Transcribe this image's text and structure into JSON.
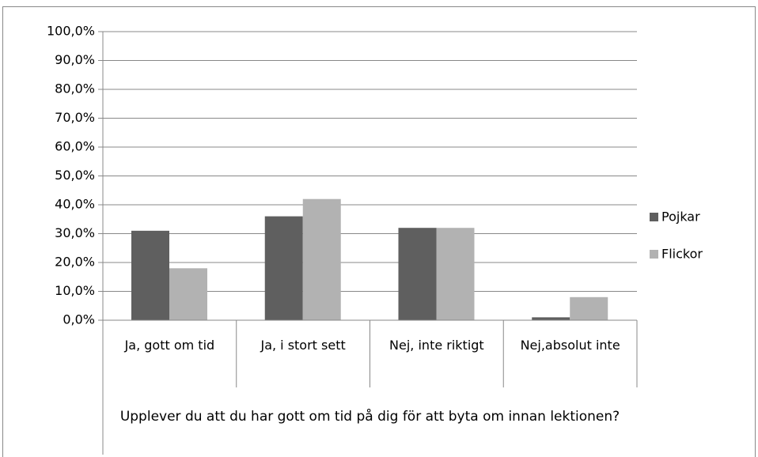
{
  "chart_data": {
    "type": "bar",
    "categories": [
      "Ja, gott om tid",
      "Ja, i stort sett",
      "Nej, inte riktigt",
      "Nej,absolut inte"
    ],
    "x_label": "Upplever du att du har gott om tid på dig för att byta om innan lektionen?",
    "series": [
      {
        "name": "Pojkar",
        "color": "#5f5f5f",
        "values": [
          31,
          36,
          32,
          1
        ]
      },
      {
        "name": "Flickor",
        "color": "#b2b2b2",
        "values": [
          18,
          42,
          32,
          8
        ]
      }
    ],
    "ylim": [
      0,
      100
    ],
    "yticks": [
      {
        "value": 0,
        "label": "0,0%"
      },
      {
        "value": 10,
        "label": "10,0%"
      },
      {
        "value": 20,
        "label": "20,0%"
      },
      {
        "value": 30,
        "label": "30,0%"
      },
      {
        "value": 40,
        "label": "40,0%"
      },
      {
        "value": 50,
        "label": "50,0%"
      },
      {
        "value": 60,
        "label": "60,0%"
      },
      {
        "value": 70,
        "label": "70,0%"
      },
      {
        "value": 80,
        "label": "80,0%"
      },
      {
        "value": 90,
        "label": "90,0%"
      },
      {
        "value": 100,
        "label": "100,0%"
      }
    ],
    "grid": true,
    "legend": "right"
  }
}
